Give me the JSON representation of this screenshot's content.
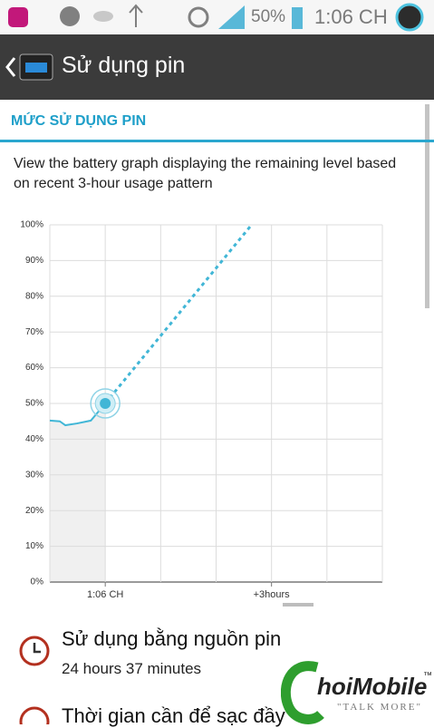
{
  "status_bar": {
    "battery_percent": "50%",
    "time": "1:06 CH"
  },
  "action_bar": {
    "title": "Sử dụng pin"
  },
  "section": {
    "header": "MỨC SỬ DỤNG PIN",
    "description": "View the battery graph displaying the remaining level based on recent 3-hour usage pattern"
  },
  "chart_data": {
    "type": "line",
    "xlim": [
      -1,
      5
    ],
    "ylim": [
      0,
      100
    ],
    "xticks": [
      {
        "value": 0,
        "label": "1:06 CH"
      },
      {
        "value": 3,
        "label": "+3hours"
      }
    ],
    "xgrid": [
      -1,
      0,
      1,
      2,
      3,
      4,
      5
    ],
    "yticks": [
      {
        "value": 0,
        "label": "0%"
      },
      {
        "value": 10,
        "label": "10%"
      },
      {
        "value": 20,
        "label": "20%"
      },
      {
        "value": 30,
        "label": "30%"
      },
      {
        "value": 40,
        "label": "40%"
      },
      {
        "value": 50,
        "label": "50%"
      },
      {
        "value": 60,
        "label": "60%"
      },
      {
        "value": 70,
        "label": "70%"
      },
      {
        "value": 80,
        "label": "80%"
      },
      {
        "value": 90,
        "label": "90%"
      },
      {
        "value": 100,
        "label": "100%"
      }
    ],
    "grid": true,
    "series": [
      {
        "color": "#41b6d6",
        "line_style": "solid",
        "fill": "#f0f0f0",
        "x": [
          -1,
          -0.82,
          -0.72,
          -0.51,
          -0.26,
          0
        ],
        "values": [
          45.2,
          45,
          43.9,
          44.4,
          45.2,
          50
        ]
      },
      {
        "color": "#41b6d6",
        "line_style": "dashed",
        "x": [
          0,
          2.64
        ],
        "values": [
          50,
          100
        ]
      }
    ]
  },
  "items": [
    {
      "title": "Sử dụng bằng nguồn pin",
      "subtitle": "24 hours 37 minutes"
    },
    {
      "title": "Thời gian cần để sạc đầy"
    }
  ],
  "watermark": {
    "brand": "hoiMobile",
    "tagline": "\"TALK MORE\"",
    "trademark": "™"
  }
}
